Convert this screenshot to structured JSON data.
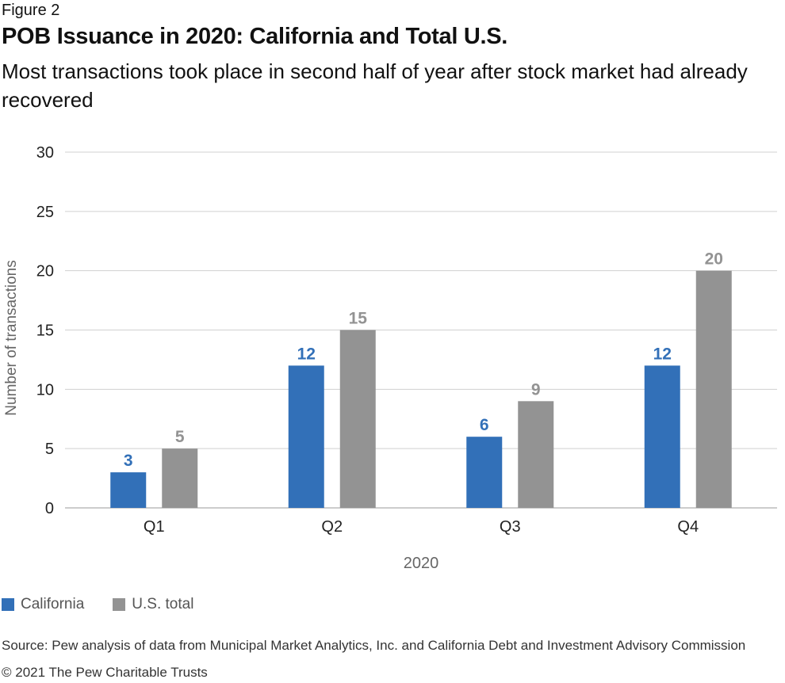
{
  "figure_label": "Figure 2",
  "title": "POB Issuance in 2020: California and Total U.S.",
  "subtitle": "Most transactions took place in second half of year after stock market had already recovered",
  "source": "Source: Pew analysis of data from Municipal Market Analytics, Inc. and California Debt and Investment Advisory Commission",
  "copyright": "© 2021 The Pew Charitable Trusts",
  "colors": {
    "california": "#3270b8",
    "us_total": "#939393",
    "grid": "#d0d0d0",
    "axis_text": "#666666"
  },
  "chart_data": {
    "type": "bar",
    "title": "POB Issuance in 2020: California and Total U.S.",
    "xlabel": "2020",
    "ylabel": "Number of transactions",
    "categories": [
      "Q1",
      "Q2",
      "Q3",
      "Q4"
    ],
    "series": [
      {
        "name": "California",
        "values": [
          3,
          12,
          6,
          12
        ]
      },
      {
        "name": "U.S. total",
        "values": [
          5,
          15,
          9,
          20
        ]
      }
    ],
    "ylim": [
      0,
      30
    ],
    "yticks": [
      0,
      5,
      10,
      15,
      20,
      25,
      30
    ],
    "grid": true,
    "legend": "bottom-left"
  }
}
